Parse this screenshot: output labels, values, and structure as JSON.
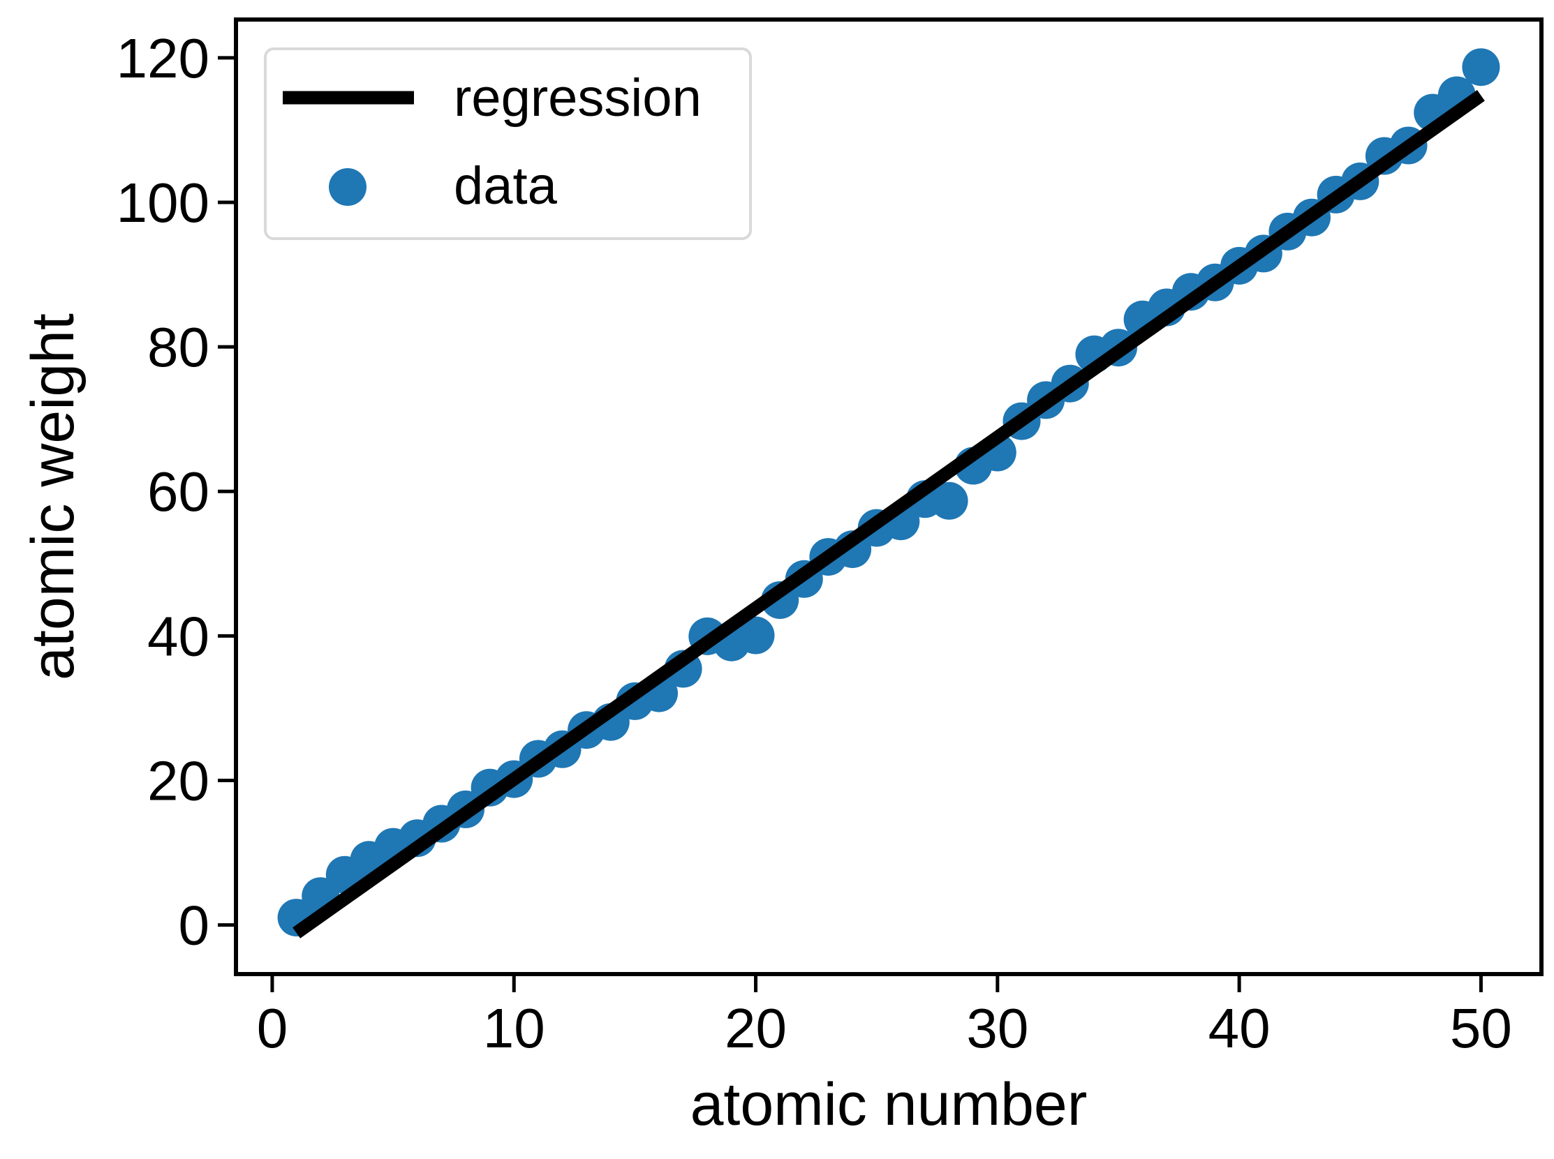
{
  "chart_data": {
    "type": "scatter",
    "title": "",
    "xlabel": "atomic number",
    "ylabel": "atomic weight",
    "xlim": [
      -1.5,
      52.5
    ],
    "ylim": [
      -6.8,
      125.3
    ],
    "xticks": [
      0,
      10,
      20,
      30,
      40,
      50
    ],
    "yticks": [
      0,
      20,
      40,
      60,
      80,
      100,
      120
    ],
    "grid": false,
    "legend_position": "top-left",
    "legend": [
      {
        "key": "regression",
        "label": "regression"
      },
      {
        "key": "data",
        "label": "data"
      }
    ],
    "colors": {
      "data": "#1f77b4",
      "regression": "#000000",
      "axes": "#000000",
      "legend_border": "#d9d9d9"
    },
    "series": [
      {
        "name": "data",
        "kind": "scatter",
        "x": [
          1,
          2,
          3,
          4,
          5,
          6,
          7,
          8,
          9,
          10,
          11,
          12,
          13,
          14,
          15,
          16,
          17,
          18,
          19,
          20,
          21,
          22,
          23,
          24,
          25,
          26,
          27,
          28,
          29,
          30,
          31,
          32,
          33,
          34,
          35,
          36,
          37,
          38,
          39,
          40,
          41,
          42,
          43,
          44,
          45,
          46,
          47,
          48,
          49,
          50
        ],
        "y": [
          1.01,
          4.0,
          6.94,
          9.01,
          10.81,
          12.01,
          14.01,
          16.0,
          19.0,
          20.18,
          22.99,
          24.31,
          26.98,
          28.09,
          30.97,
          32.06,
          35.45,
          39.95,
          39.1,
          40.08,
          44.96,
          47.87,
          50.94,
          52.0,
          54.94,
          55.85,
          58.93,
          58.69,
          63.55,
          65.38,
          69.72,
          72.63,
          74.92,
          78.97,
          79.9,
          83.8,
          85.47,
          87.62,
          88.91,
          91.22,
          92.91,
          95.95,
          97.9,
          101.07,
          102.91,
          106.42,
          107.87,
          112.41,
          114.82,
          118.71
        ]
      },
      {
        "name": "regression",
        "kind": "line",
        "x": [
          1,
          50
        ],
        "y": [
          -1.1,
          114.8
        ]
      }
    ]
  }
}
